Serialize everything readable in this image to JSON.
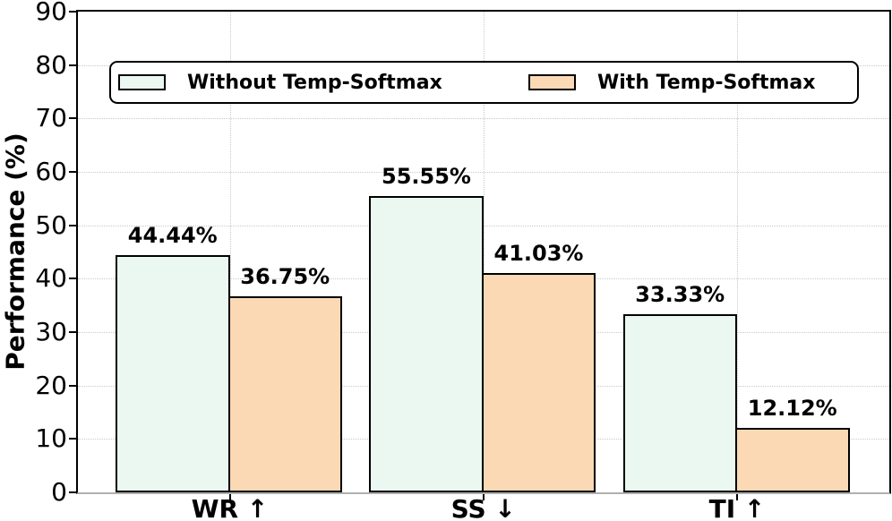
{
  "chart_data": {
    "type": "bar",
    "title": "",
    "xlabel": "",
    "ylabel": "Performance (%)",
    "ylim": [
      0,
      90
    ],
    "yticks": [
      0,
      10,
      20,
      30,
      40,
      50,
      60,
      70,
      80,
      90
    ],
    "ytick_labels": [
      "0",
      "10",
      "20",
      "30",
      "40",
      "50",
      "60",
      "70",
      "80",
      "90"
    ],
    "grid": true,
    "legend_position": "upper center",
    "categories": [
      "WR ↑",
      "SS ↓",
      "TI ↑"
    ],
    "series": [
      {
        "name": "Without Temp-Softmax",
        "color": "#EBF8F1",
        "edge_color": "#000000",
        "values": [
          44.44,
          55.55,
          33.33
        ],
        "value_labels": [
          "44.44%",
          "55.55%",
          "33.33%"
        ]
      },
      {
        "name": "With Temp-Softmax",
        "color": "#FBD9B4",
        "edge_color": "#000000",
        "values": [
          36.75,
          41.03,
          12.12
        ],
        "value_labels": [
          "36.75%",
          "41.03%",
          "12.12%"
        ]
      }
    ],
    "colors": {
      "grid": "#c9c9c9",
      "spine": "#000000",
      "bottom_spine": "#b0b0b0",
      "text": "#000000",
      "background": "#ffffff"
    }
  }
}
